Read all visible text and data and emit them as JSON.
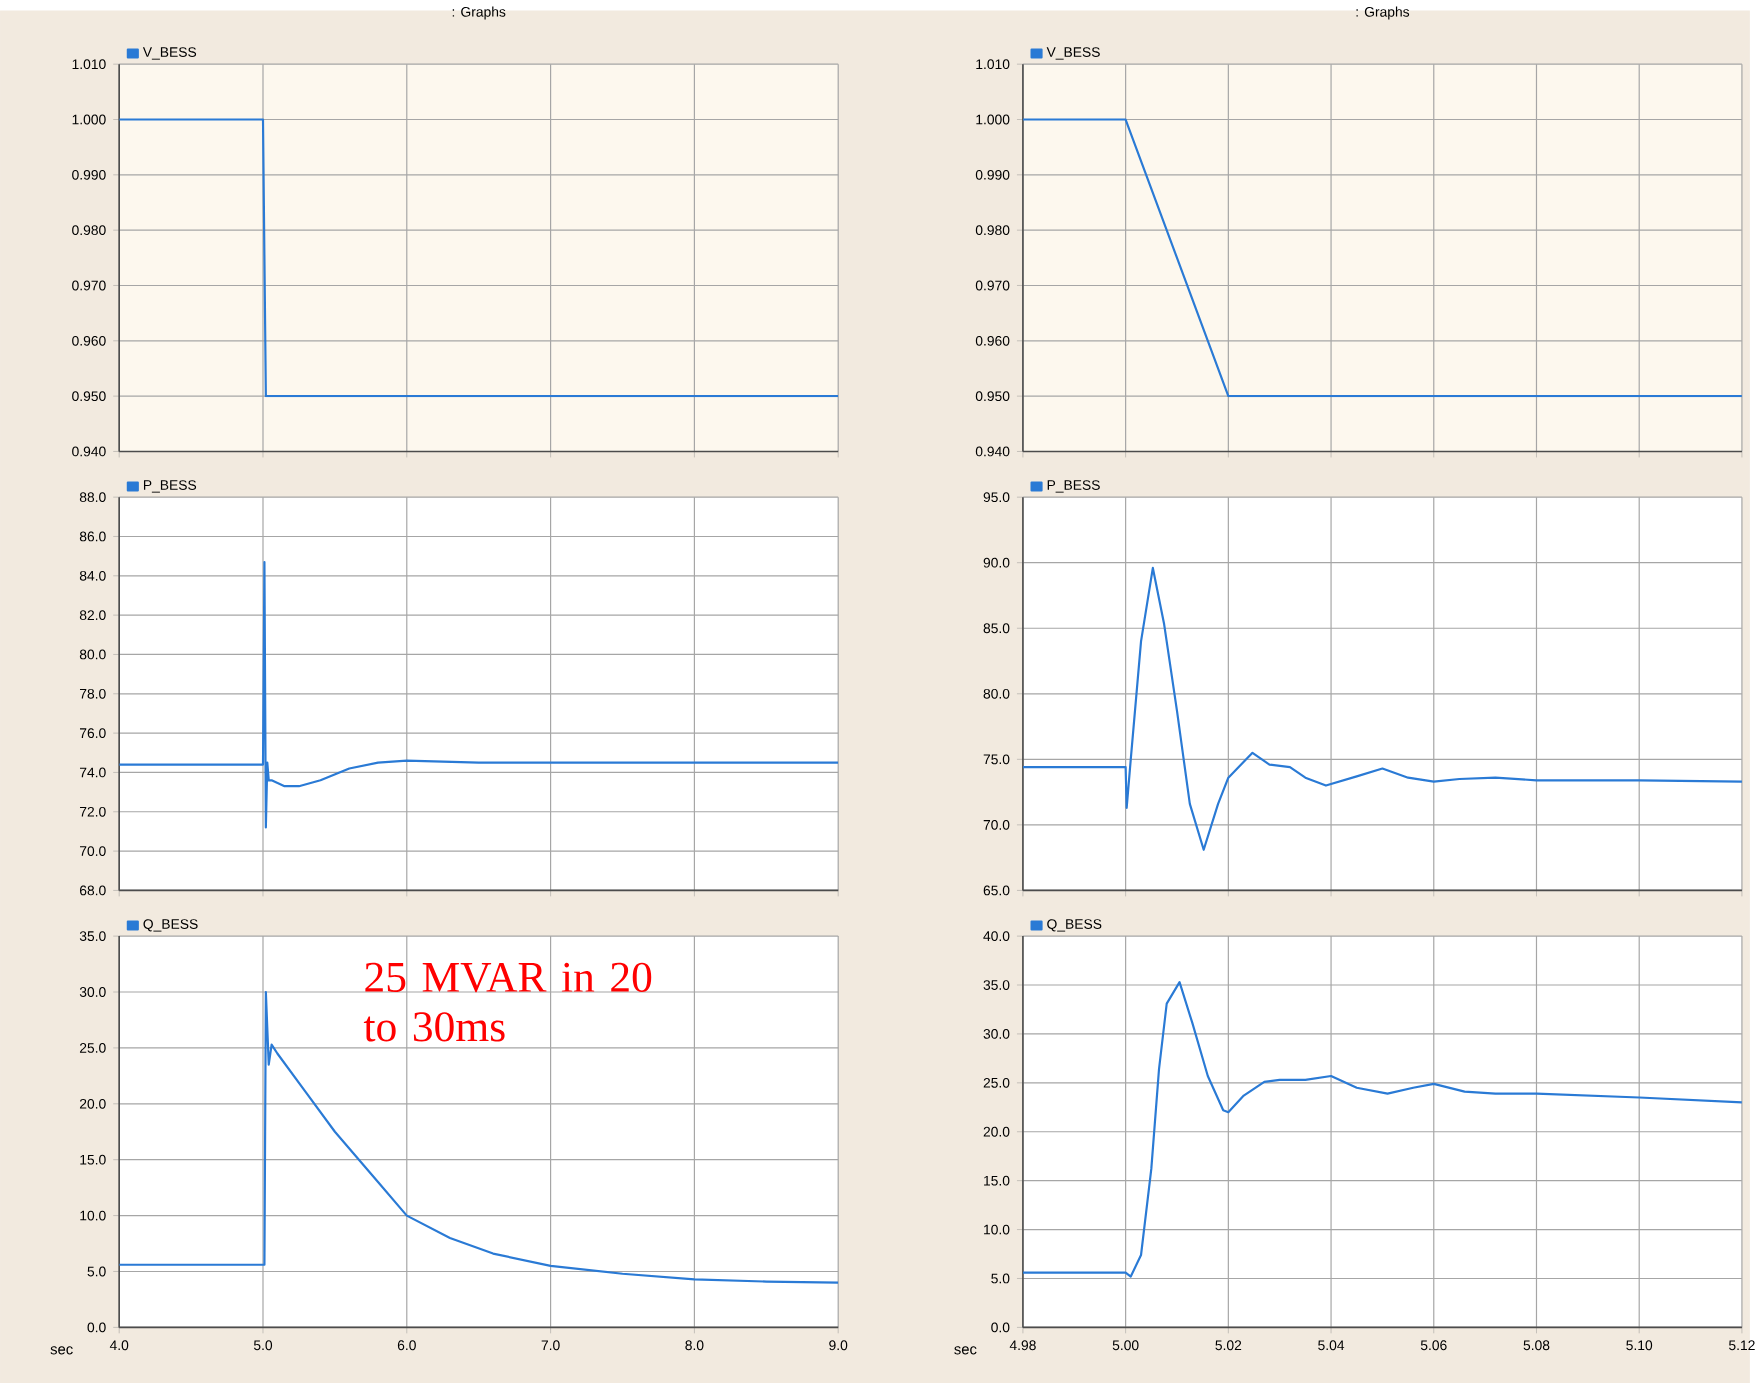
{
  "chart_data": [
    {
      "type": "line",
      "title": ": Graphs",
      "legend": "top left",
      "grid": true,
      "tick_labels": "y",
      "xlim": [
        4.0,
        9.0
      ],
      "xticks": [
        4,
        5,
        6,
        7,
        8,
        9
      ],
      "ylim": [
        0.94,
        1.01
      ],
      "yticks": [
        {
          "value": 0.94,
          "label": "0.940"
        },
        {
          "value": 0.95,
          "label": "0.950"
        },
        {
          "value": 0.96,
          "label": "0.960"
        },
        {
          "value": 0.97,
          "label": "0.970"
        },
        {
          "value": 0.98,
          "label": "0.980"
        },
        {
          "value": 0.99,
          "label": "0.990"
        },
        {
          "value": 1.0,
          "label": "1.000"
        },
        {
          "value": 1.01,
          "label": "1.010"
        }
      ],
      "series": [
        {
          "name": "V_BESS",
          "color": "#2a7ad5",
          "x": [
            4.0,
            5.0,
            5.02,
            9.0
          ],
          "values": [
            1.0,
            1.0,
            0.95,
            0.95
          ]
        }
      ]
    },
    {
      "type": "line",
      "title": ": Graphs",
      "legend": "top left",
      "grid": true,
      "tick_labels": "y",
      "xlim": [
        4.98,
        5.12
      ],
      "xticks": [
        4.98,
        5.0,
        5.02,
        5.04,
        5.06,
        5.08,
        5.1,
        5.12
      ],
      "ylim": [
        0.94,
        1.01
      ],
      "yticks": [
        {
          "value": 0.94,
          "label": "0.940"
        },
        {
          "value": 0.95,
          "label": "0.950"
        },
        {
          "value": 0.96,
          "label": "0.960"
        },
        {
          "value": 0.97,
          "label": "0.970"
        },
        {
          "value": 0.98,
          "label": "0.980"
        },
        {
          "value": 0.99,
          "label": "0.990"
        },
        {
          "value": 1.0,
          "label": "1.000"
        },
        {
          "value": 1.01,
          "label": "1.010"
        }
      ],
      "series": [
        {
          "name": "V_BESS",
          "color": "#2a7ad5",
          "x": [
            4.98,
            5.0,
            5.02,
            5.12
          ],
          "values": [
            1.0,
            1.0,
            0.95,
            0.95
          ]
        }
      ]
    },
    {
      "type": "line",
      "legend": "top left",
      "grid": true,
      "tick_labels": "y",
      "xlim": [
        4.0,
        9.0
      ],
      "xticks": [
        4,
        5,
        6,
        7,
        8,
        9
      ],
      "ylim": [
        68.0,
        88.0
      ],
      "yticks": [
        {
          "value": 68,
          "label": "68.0"
        },
        {
          "value": 70,
          "label": "70.0"
        },
        {
          "value": 72,
          "label": "72.0"
        },
        {
          "value": 74,
          "label": "74.0"
        },
        {
          "value": 76,
          "label": "76.0"
        },
        {
          "value": 78,
          "label": "78.0"
        },
        {
          "value": 80,
          "label": "80.0"
        },
        {
          "value": 82,
          "label": "82.0"
        },
        {
          "value": 84,
          "label": "84.0"
        },
        {
          "value": 86,
          "label": "86.0"
        },
        {
          "value": 88,
          "label": "88.0"
        }
      ],
      "series": [
        {
          "name": "P_BESS",
          "color": "#2a7ad5",
          "x": [
            4.0,
            5.0,
            5.01,
            5.02,
            5.03,
            5.04,
            5.06,
            5.15,
            5.25,
            5.4,
            5.6,
            5.8,
            6.0,
            6.5,
            9.0
          ],
          "values": [
            74.4,
            74.4,
            84.7,
            71.2,
            74.5,
            73.6,
            73.6,
            73.3,
            73.3,
            73.6,
            74.2,
            74.5,
            74.6,
            74.5,
            74.5
          ]
        }
      ]
    },
    {
      "type": "line",
      "legend": "top left",
      "grid": true,
      "tick_labels": "y",
      "xlim": [
        4.98,
        5.12
      ],
      "xticks": [
        4.98,
        5.0,
        5.02,
        5.04,
        5.06,
        5.08,
        5.1,
        5.12
      ],
      "ylim": [
        65.0,
        95.0
      ],
      "yticks": [
        {
          "value": 65,
          "label": "65.0"
        },
        {
          "value": 70,
          "label": "70.0"
        },
        {
          "value": 75,
          "label": "75.0"
        },
        {
          "value": 80,
          "label": "80.0"
        },
        {
          "value": 85,
          "label": "85.0"
        },
        {
          "value": 90,
          "label": "90.0"
        },
        {
          "value": 95,
          "label": "95.0"
        }
      ],
      "series": [
        {
          "name": "P_BESS",
          "color": "#2a7ad5",
          "x": [
            4.98,
            5.0,
            5.0002,
            5.001,
            5.003,
            5.0053,
            5.0075,
            5.01,
            5.0125,
            5.0152,
            5.018,
            5.02,
            5.0247,
            5.028,
            5.032,
            5.035,
            5.039,
            5.045,
            5.05,
            5.055,
            5.06,
            5.065,
            5.072,
            5.08,
            5.1,
            5.12
          ],
          "values": [
            74.4,
            74.4,
            71.3,
            75.0,
            84.0,
            89.6,
            85.3,
            78.7,
            71.6,
            68.1,
            71.6,
            73.6,
            75.5,
            74.6,
            74.4,
            73.6,
            73.0,
            73.7,
            74.3,
            73.6,
            73.3,
            73.5,
            73.6,
            73.4,
            73.4,
            73.3
          ]
        }
      ]
    },
    {
      "type": "line",
      "legend": "top left",
      "grid": true,
      "xlabel": "sec",
      "annotations": [
        "25 MVAR in 20 to 30ms"
      ],
      "xlim": [
        4.0,
        9.0
      ],
      "xticks": [
        {
          "value": 4,
          "label": "4.0"
        },
        {
          "value": 5,
          "label": "5.0"
        },
        {
          "value": 6,
          "label": "6.0"
        },
        {
          "value": 7,
          "label": "7.0"
        },
        {
          "value": 8,
          "label": "8.0"
        },
        {
          "value": 9,
          "label": "9.0"
        }
      ],
      "ylim": [
        0.0,
        35.0
      ],
      "yticks": [
        {
          "value": 0,
          "label": "0.0"
        },
        {
          "value": 5,
          "label": "5.0"
        },
        {
          "value": 10,
          "label": "10.0"
        },
        {
          "value": 15,
          "label": "15.0"
        },
        {
          "value": 20,
          "label": "20.0"
        },
        {
          "value": 25,
          "label": "25.0"
        },
        {
          "value": 30,
          "label": "30.0"
        },
        {
          "value": 35,
          "label": "35.0"
        }
      ],
      "series": [
        {
          "name": "Q_BESS",
          "color": "#2a7ad5",
          "x": [
            4.0,
            5.0,
            5.01,
            5.02,
            5.04,
            5.06,
            5.1,
            5.3,
            5.5,
            5.8,
            6.0,
            6.3,
            6.6,
            7.0,
            7.5,
            8.0,
            8.5,
            9.0
          ],
          "values": [
            5.6,
            5.6,
            5.6,
            30.0,
            23.5,
            25.3,
            24.5,
            21.0,
            17.5,
            13.0,
            10.0,
            8.0,
            6.6,
            5.5,
            4.8,
            4.3,
            4.1,
            4.0
          ]
        }
      ]
    },
    {
      "type": "line",
      "legend": "top left",
      "grid": true,
      "xlabel": "sec",
      "xlim": [
        4.98,
        5.12
      ],
      "xticks": [
        {
          "value": 4.98,
          "label": "4.98"
        },
        {
          "value": 5.0,
          "label": "5.00"
        },
        {
          "value": 5.02,
          "label": "5.02"
        },
        {
          "value": 5.04,
          "label": "5.04"
        },
        {
          "value": 5.06,
          "label": "5.06"
        },
        {
          "value": 5.08,
          "label": "5.08"
        },
        {
          "value": 5.1,
          "label": "5.10"
        },
        {
          "value": 5.12,
          "label": "5.12"
        }
      ],
      "ylim": [
        0.0,
        40.0
      ],
      "yticks": [
        {
          "value": 0,
          "label": "0.0"
        },
        {
          "value": 5,
          "label": "5.0"
        },
        {
          "value": 10,
          "label": "10.0"
        },
        {
          "value": 15,
          "label": "15.0"
        },
        {
          "value": 20,
          "label": "20.0"
        },
        {
          "value": 25,
          "label": "25.0"
        },
        {
          "value": 30,
          "label": "30.0"
        },
        {
          "value": 35,
          "label": "35.0"
        },
        {
          "value": 40,
          "label": "40.0"
        }
      ],
      "series": [
        {
          "name": "Q_BESS",
          "color": "#2a7ad5",
          "x": [
            4.98,
            5.0,
            5.001,
            5.003,
            5.005,
            5.0065,
            5.008,
            5.0105,
            5.013,
            5.016,
            5.019,
            5.02,
            5.023,
            5.027,
            5.03,
            5.035,
            5.04,
            5.045,
            5.051,
            5.056,
            5.06,
            5.066,
            5.072,
            5.08,
            5.1,
            5.12
          ],
          "values": [
            5.6,
            5.6,
            5.2,
            7.4,
            16.2,
            26.4,
            33.1,
            35.3,
            31.1,
            25.7,
            22.2,
            22.0,
            23.7,
            25.1,
            25.3,
            25.3,
            25.7,
            24.5,
            23.9,
            24.5,
            24.9,
            24.1,
            23.9,
            23.9,
            23.5,
            23.0
          ]
        }
      ]
    }
  ]
}
